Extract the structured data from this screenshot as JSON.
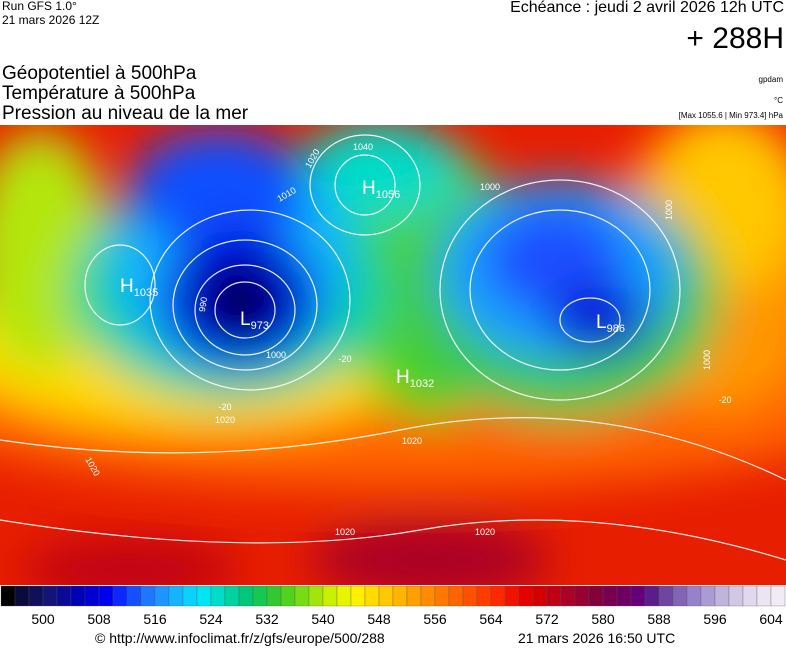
{
  "header": {
    "run": "Run GFS 1.0°",
    "run_date": "21 mars 2026 12Z",
    "valid": "Echéance : jeudi 2 avril 2026 12h UTC",
    "lead": "+ 288H"
  },
  "fields": [
    {
      "name": "Géopotentiel à 500hPa",
      "unit": "gpdam"
    },
    {
      "name": "Température à 500hPa",
      "unit": "°C"
    },
    {
      "name": "Pression au niveau de la mer",
      "unit": "[Max 1055.6 | Min 973.4] hPa"
    }
  ],
  "pressure_centers": [
    {
      "kind": "H",
      "value": "1035"
    },
    {
      "kind": "L",
      "value": "973"
    },
    {
      "kind": "H",
      "value": "1056"
    },
    {
      "kind": "H",
      "value": "1032"
    },
    {
      "kind": "L",
      "value": "986"
    }
  ],
  "contour_labels": [
    "1020",
    "1010",
    "1000",
    "990",
    "1000",
    "1020",
    "1020",
    "1020",
    "1020",
    "1020",
    "1040",
    "1000",
    "1000",
    "-20",
    "-20",
    "-20"
  ],
  "colorbar": {
    "colors": [
      "#000000",
      "#0a0a3c",
      "#0f0f5a",
      "#141478",
      "#0a0a96",
      "#0000b4",
      "#0000d2",
      "#0000f0",
      "#0a28ff",
      "#1450ff",
      "#1e78ff",
      "#1e96ff",
      "#14b4ff",
      "#0ad2ff",
      "#00e6f0",
      "#00dcc8",
      "#00d2a0",
      "#00c878",
      "#14c850",
      "#32c832",
      "#50d21e",
      "#78dc14",
      "#a0e60a",
      "#c8f000",
      "#e6f500",
      "#fff000",
      "#ffdc00",
      "#ffc800",
      "#ffb400",
      "#ffa000",
      "#ff8c00",
      "#ff7800",
      "#ff6400",
      "#ff5000",
      "#ff3c00",
      "#ff2800",
      "#f01400",
      "#e60000",
      "#d20000",
      "#be0014",
      "#aa0028",
      "#960032",
      "#82003c",
      "#780050",
      "#6e0064",
      "#640078",
      "#5a1e8c",
      "#6e46a0",
      "#8264b4",
      "#9682c8",
      "#aa9bd2",
      "#beb4dc",
      "#d2c8e6",
      "#e1d7ee",
      "#ebe4f2",
      "#f0ebf5"
    ],
    "labels": [
      500,
      508,
      516,
      524,
      532,
      540,
      548,
      556,
      564,
      572,
      580,
      588,
      596,
      604
    ]
  },
  "footer": {
    "source": "© http://www.infoclimat.fr/z/gfs/europe/500/288",
    "generated": "21 mars 2026 16:50 UTC"
  }
}
